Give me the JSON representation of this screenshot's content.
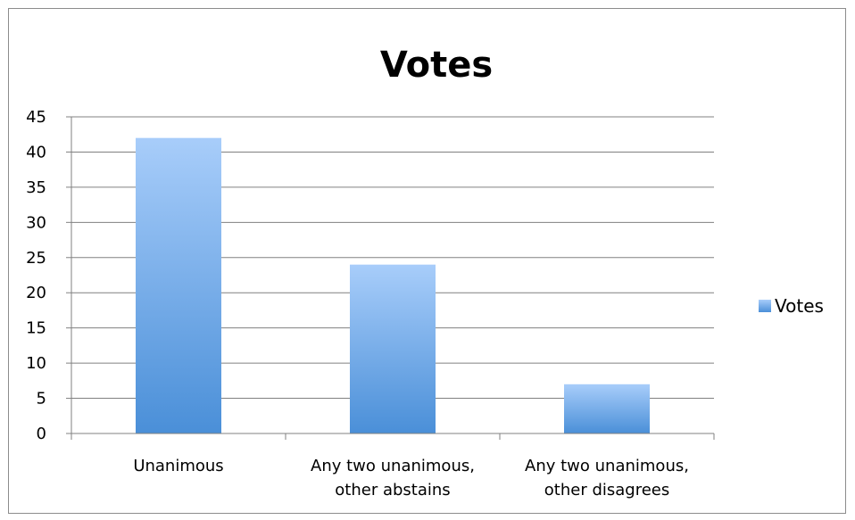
{
  "chart_data": {
    "type": "bar",
    "title": "Votes",
    "xlabel": "",
    "ylabel": "",
    "categories": [
      [
        "Unanimous"
      ],
      [
        "Any two unanimous,",
        "other abstains"
      ],
      [
        "Any two unanimous,",
        "other disagrees"
      ]
    ],
    "series": [
      {
        "name": "Votes",
        "values": [
          42,
          24,
          7
        ]
      }
    ],
    "ylim": [
      0,
      45
    ],
    "yticks": [
      0,
      5,
      10,
      15,
      20,
      25,
      30,
      35,
      40,
      45
    ],
    "grid": true,
    "legend_position": "right",
    "colors": {
      "bar_top": "#a8cdfa",
      "bar_bottom": "#4a8fd8",
      "grid": "#808080",
      "axis": "#808080"
    }
  }
}
